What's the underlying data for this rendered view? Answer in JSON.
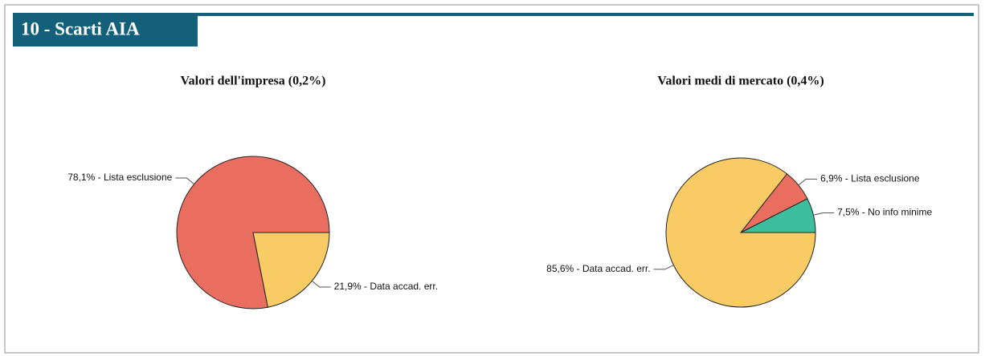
{
  "header": {
    "title": "10 - Scarti AIA"
  },
  "chart_data": [
    {
      "type": "pie",
      "title": "Valori dell'impresa (0,2%)",
      "values": [
        78.1,
        21.9
      ],
      "value_labels": [
        "78,1% - Lista esclusione",
        "21,9% - Data accad. err."
      ],
      "colors": [
        "#e96e60",
        "#f9cb65"
      ]
    },
    {
      "type": "pie",
      "title": "Valori medi di mercato (0,4%)",
      "values": [
        7.5,
        6.9,
        85.6
      ],
      "value_labels": [
        "7,5% - No info minime",
        "6,9% - Lista esclusione",
        "85,6% - Data accad. err."
      ],
      "colors": [
        "#3dbf9f",
        "#e96e60",
        "#f9cb65"
      ]
    }
  ]
}
